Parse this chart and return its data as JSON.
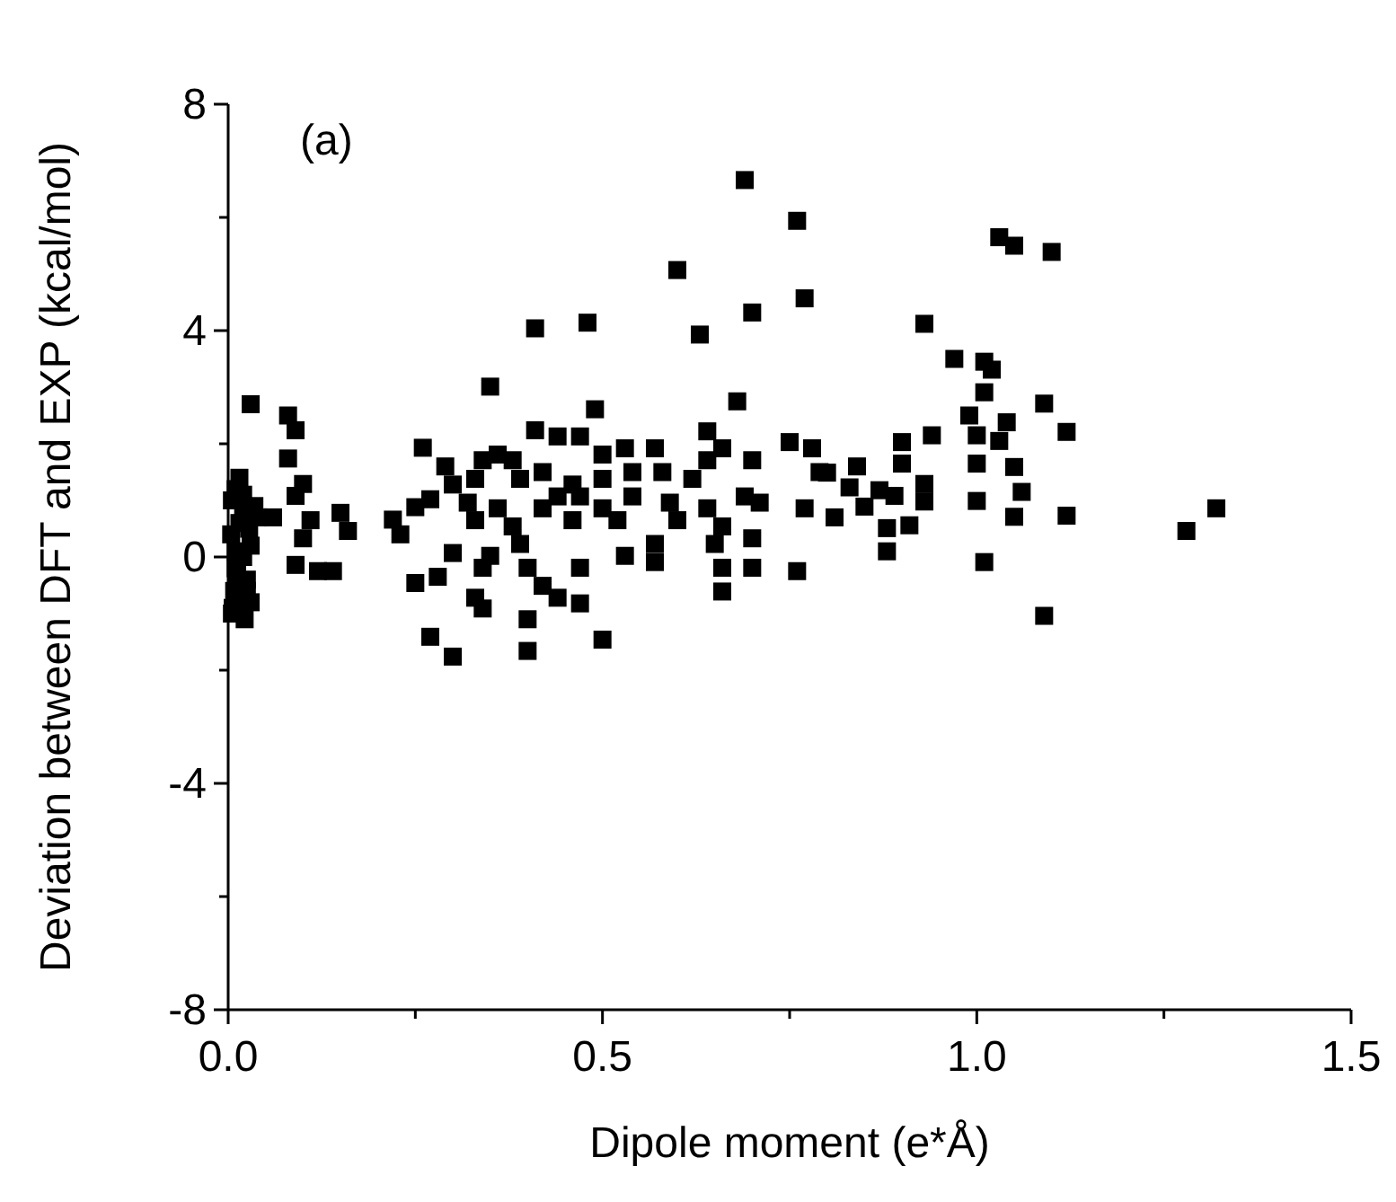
{
  "chart_data": {
    "type": "scatter",
    "xlabel": "Dipole moment (e*Å)",
    "ylabel": "Deviation between DFT and EXP (kcal/mol)",
    "annotations": [
      "(a)"
    ],
    "marker": "square",
    "grid": false,
    "xlim": [
      0,
      1.5
    ],
    "ylim": [
      -8,
      8
    ],
    "xticks": [
      {
        "value": 0,
        "label": "0.0"
      },
      {
        "value": 0.25,
        "label": null
      },
      {
        "value": 0.5,
        "label": "0.5"
      },
      {
        "value": 0.75,
        "label": null
      },
      {
        "value": 1,
        "label": "1.0"
      },
      {
        "value": 1.25,
        "label": null
      },
      {
        "value": 1.5,
        "label": "1.5"
      }
    ],
    "yticks": [
      -8,
      {
        "value": -6,
        "label": null
      },
      -4,
      {
        "value": -2,
        "label": null
      },
      0,
      {
        "value": 2,
        "label": null
      },
      4,
      {
        "value": 6,
        "label": null
      },
      8
    ],
    "series": [
      {
        "color": "#000000",
        "x": [
          0.005,
          0.008,
          0.01,
          0.015,
          0.005,
          0.01,
          0.02,
          0.025,
          0.03,
          0.006,
          0.012,
          0.02,
          0.028,
          0.035,
          0.004,
          0.015,
          0.022,
          0.03,
          0.01,
          0.025,
          0.03,
          0.04,
          0.02,
          0.69,
          0.76,
          0.6,
          0.77,
          0.7,
          0.63,
          0.48,
          0.41,
          0.35,
          0.49,
          0.68,
          0.64,
          0.08,
          0.09,
          0.08,
          0.1,
          0.09,
          0.06,
          0.11,
          0.1,
          0.09,
          0.12,
          0.14,
          0.15,
          0.16,
          0.22,
          0.23,
          0.25,
          0.26,
          0.29,
          0.3,
          0.27,
          0.25,
          0.28,
          0.27,
          0.3,
          0.4,
          0.4,
          0.5,
          0.33,
          0.34,
          0.3,
          0.33,
          0.32,
          0.33,
          0.34,
          0.36,
          0.38,
          0.41,
          0.44,
          0.47,
          0.5,
          0.53,
          0.57,
          0.58,
          0.59,
          0.6,
          0.57,
          0.57,
          0.53,
          0.47,
          0.47,
          0.44,
          0.42,
          0.4,
          0.39,
          0.38,
          0.36,
          0.35,
          0.34,
          0.42,
          0.44,
          0.46,
          0.47,
          0.5,
          0.52,
          0.54,
          0.39,
          0.42,
          0.46,
          0.5,
          0.54,
          0.62,
          0.64,
          0.65,
          0.66,
          0.66,
          0.66,
          0.69,
          0.7,
          0.71,
          0.7,
          0.7,
          0.64,
          0.66,
          0.75,
          0.78,
          0.79,
          0.77,
          0.76,
          1.03,
          1.05,
          1.1,
          0.93,
          0.97,
          1.01,
          1.02,
          1.01,
          1.09,
          0.99,
          1.04,
          1.0,
          1.03,
          1.12,
          0.94,
          0.9,
          0.9,
          0.84,
          0.78,
          0.8,
          0.83,
          0.87,
          0.89,
          0.93,
          0.93,
          0.81,
          0.85,
          0.88,
          0.91,
          0.88,
          1.0,
          1.05,
          1.06,
          1.0,
          1.05,
          1.12,
          1.01,
          1.09,
          1.28,
          1.32
        ],
        "values": [
          -1.0,
          -0.6,
          -0.2,
          0.6,
          1.0,
          1.2,
          0.8,
          -0.4,
          -0.8,
          -0.9,
          -0.3,
          0.0,
          0.5,
          0.9,
          0.4,
          1.4,
          -1.1,
          2.7,
          0.1,
          -0.6,
          0.2,
          0.7,
          1.1,
          6.66,
          5.94,
          5.07,
          4.57,
          4.32,
          3.93,
          4.14,
          4.04,
          3.01,
          2.61,
          2.75,
          2.22,
          2.5,
          2.24,
          1.74,
          1.29,
          1.08,
          0.7,
          0.65,
          0.33,
          -0.14,
          -0.25,
          -0.25,
          0.78,
          0.46,
          0.66,
          0.4,
          0.88,
          1.93,
          1.6,
          1.28,
          1.02,
          -0.46,
          -0.35,
          -1.41,
          -1.76,
          -1.66,
          -1.1,
          -1.46,
          -0.72,
          -0.91,
          0.07,
          0.65,
          0.96,
          1.38,
          1.71,
          1.81,
          1.71,
          2.24,
          2.13,
          2.13,
          1.81,
          1.92,
          1.92,
          1.5,
          0.96,
          0.65,
          0.23,
          -0.09,
          0.02,
          -0.19,
          -0.82,
          -0.72,
          -0.51,
          -0.19,
          0.23,
          0.54,
          0.86,
          0.02,
          -0.19,
          0.86,
          1.07,
          0.65,
          1.07,
          0.86,
          0.65,
          1.07,
          1.38,
          1.5,
          1.28,
          1.38,
          1.5,
          1.38,
          0.86,
          0.23,
          -0.19,
          -0.61,
          0.54,
          1.07,
          1.71,
          0.96,
          0.33,
          -0.19,
          1.71,
          1.92,
          2.03,
          1.92,
          1.5,
          0.86,
          -0.25,
          5.65,
          5.5,
          5.39,
          4.12,
          3.5,
          3.45,
          3.31,
          2.91,
          2.71,
          2.5,
          2.38,
          2.15,
          2.05,
          2.21,
          2.15,
          2.03,
          1.65,
          1.6,
          1.92,
          1.49,
          1.23,
          1.18,
          1.08,
          1.29,
          0.98,
          0.7,
          0.89,
          0.51,
          0.56,
          0.1,
          1.65,
          1.59,
          1.15,
          0.99,
          0.71,
          0.73,
          -0.09,
          -1.04,
          0.46,
          0.86
        ]
      }
    ]
  }
}
